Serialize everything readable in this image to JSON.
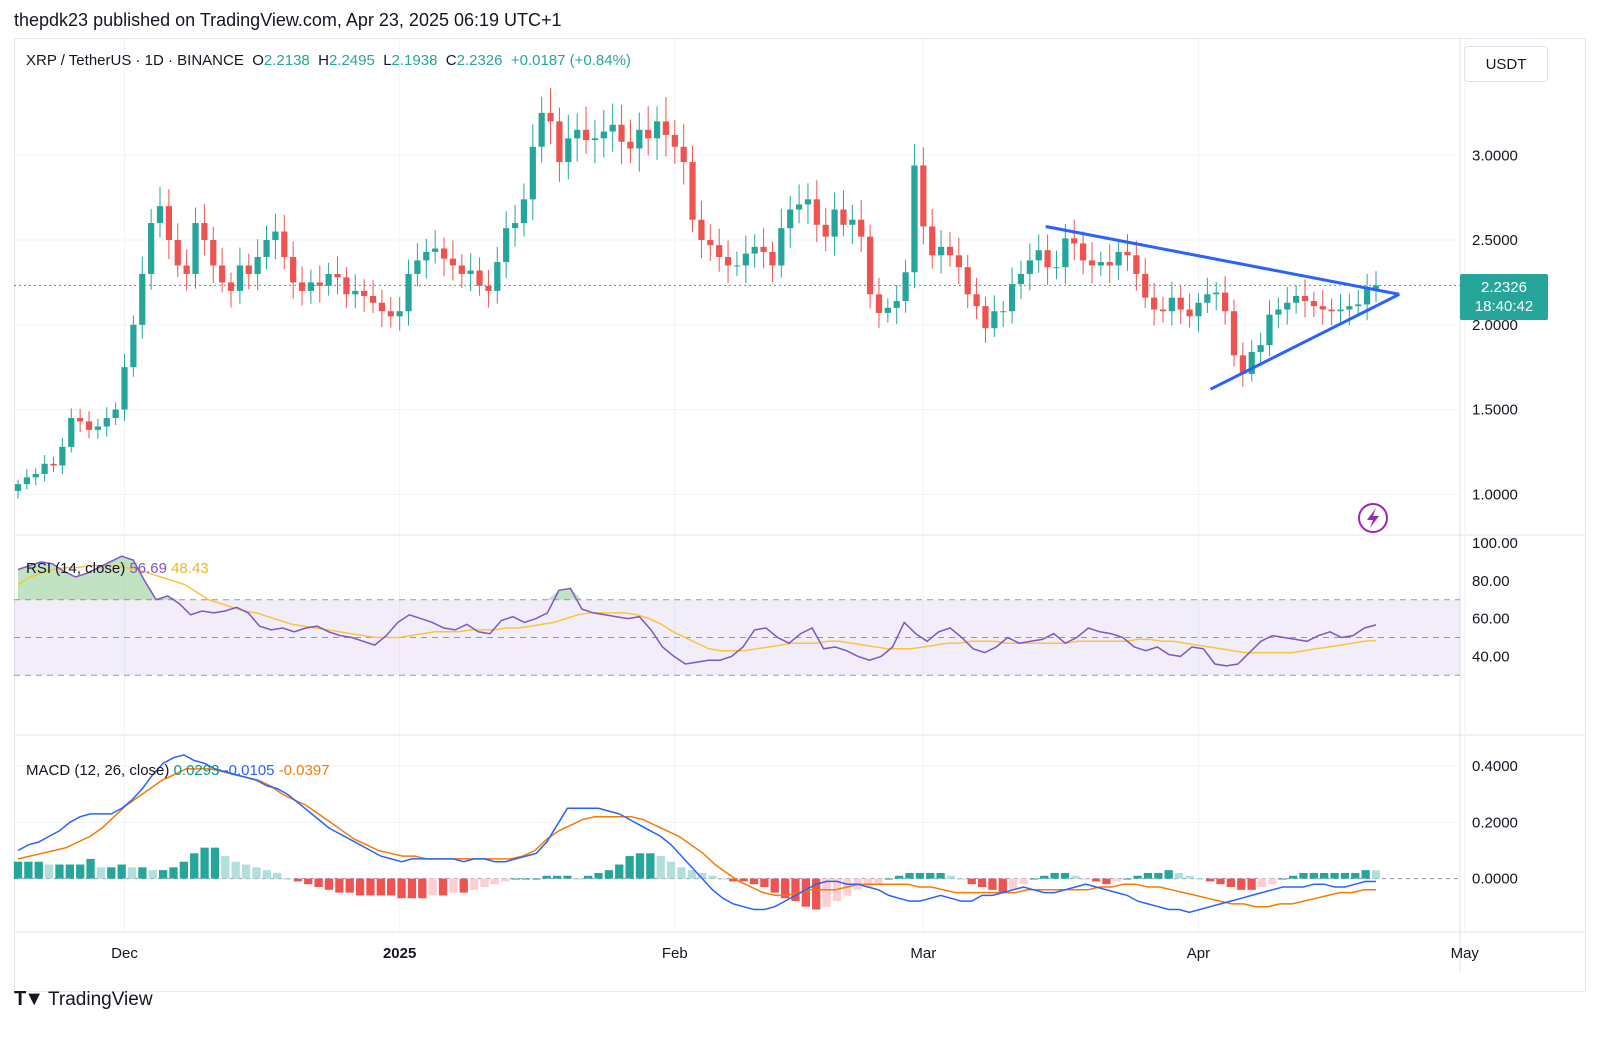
{
  "header": {
    "text": "thepdk23 published on TradingView.com, Apr 23, 2025 06:19 UTC+1"
  },
  "legend": {
    "symbol": "XRP / TetherUS · 1D · BINANCE",
    "o_label": "O",
    "o_value": "2.2138",
    "h_label": "H",
    "h_value": "2.2495",
    "l_label": "L",
    "l_value": "2.1938",
    "c_label": "C",
    "c_value": "2.2326",
    "change": "+0.0187 (+0.84%)"
  },
  "currency_button": "USDT",
  "last_price": {
    "value": "2.2326",
    "countdown": "18:40:42"
  },
  "rsi_legend": {
    "label": "RSI (14, close)",
    "rsi": "56.69",
    "ma": "48.43"
  },
  "macd_legend": {
    "label": "MACD (12, 26, close)",
    "hist": "0.0293",
    "macd": "-0.0105",
    "signal": "-0.0397"
  },
  "footer": {
    "brand": "TradingView"
  },
  "colors": {
    "up": "#26a69a",
    "down": "#ef5350",
    "rsi_line": "#7e57c2",
    "rsi_ma": "#f7c540",
    "macd_line": "#2962ff",
    "signal_line": "#f57c00",
    "trendline": "#2962ff"
  },
  "chart_data": {
    "type": "candlestick",
    "x_axis_labels": [
      "Dec",
      "2025",
      "Feb",
      "Mar",
      "Apr",
      "May"
    ],
    "price_axis": {
      "ticks": [
        "3.0000",
        "2.5000",
        "2.0000",
        "1.5000",
        "1.0000"
      ],
      "range": [
        0.76,
        3.68
      ]
    },
    "rsi_axis": {
      "ticks": [
        "100.00",
        "80.00",
        "60.00",
        "40.00"
      ],
      "bands": [
        70,
        50,
        30
      ]
    },
    "macd_axis": {
      "ticks": [
        "0.4000",
        "0.2000",
        "0.0000"
      ],
      "range": [
        -0.19,
        0.5
      ]
    },
    "close": [
      1.06,
      1.1,
      1.12,
      1.18,
      1.17,
      1.28,
      1.45,
      1.43,
      1.38,
      1.4,
      1.45,
      1.5,
      1.75,
      2.0,
      2.3,
      2.6,
      2.7,
      2.5,
      2.35,
      2.3,
      2.6,
      2.5,
      2.35,
      2.25,
      2.2,
      2.35,
      2.3,
      2.4,
      2.5,
      2.55,
      2.4,
      2.25,
      2.2,
      2.25,
      2.23,
      2.3,
      2.28,
      2.18,
      2.2,
      2.17,
      2.13,
      2.08,
      2.05,
      2.08,
      2.3,
      2.38,
      2.43,
      2.45,
      2.39,
      2.35,
      2.3,
      2.32,
      2.23,
      2.2,
      2.37,
      2.57,
      2.6,
      2.74,
      3.05,
      3.25,
      3.2,
      2.96,
      3.1,
      3.15,
      3.09,
      3.1,
      3.14,
      3.18,
      3.08,
      3.04,
      3.15,
      3.1,
      3.2,
      3.12,
      3.05,
      2.96,
      2.62,
      2.5,
      2.47,
      2.4,
      2.35,
      2.35,
      2.42,
      2.46,
      2.43,
      2.35,
      2.57,
      2.68,
      2.71,
      2.74,
      2.59,
      2.52,
      2.68,
      2.59,
      2.62,
      2.52,
      2.18,
      2.07,
      2.1,
      2.14,
      2.31,
      2.94,
      2.58,
      2.41,
      2.46,
      2.41,
      2.34,
      2.18,
      2.11,
      1.98,
      2.08,
      2.08,
      2.24,
      2.3,
      2.38,
      2.44,
      2.34,
      2.34,
      2.51,
      2.48,
      2.38,
      2.35,
      2.37,
      2.35,
      2.43,
      2.41,
      2.3,
      2.16,
      2.09,
      2.08,
      2.16,
      2.09,
      2.05,
      2.13,
      2.18,
      2.19,
      2.08,
      1.82,
      1.71,
      1.84,
      1.88,
      2.06,
      2.09,
      2.13,
      2.17,
      2.14,
      2.11,
      2.09,
      2.08,
      2.09,
      2.11,
      2.12,
      2.2138,
      2.2326
    ],
    "macd": [
      0.1,
      0.12,
      0.13,
      0.15,
      0.17,
      0.2,
      0.22,
      0.23,
      0.23,
      0.23,
      0.25,
      0.28,
      0.32,
      0.37,
      0.41,
      0.43,
      0.44,
      0.42,
      0.41,
      0.39,
      0.38,
      0.37,
      0.36,
      0.35,
      0.33,
      0.32,
      0.3,
      0.27,
      0.24,
      0.21,
      0.18,
      0.16,
      0.14,
      0.12,
      0.1,
      0.08,
      0.07,
      0.06,
      0.07,
      0.07,
      0.07,
      0.07,
      0.07,
      0.06,
      0.07,
      0.07,
      0.06,
      0.06,
      0.07,
      0.08,
      0.09,
      0.13,
      0.19,
      0.25,
      0.25,
      0.25,
      0.25,
      0.24,
      0.23,
      0.21,
      0.19,
      0.17,
      0.15,
      0.12,
      0.08,
      0.04,
      0.0,
      -0.04,
      -0.07,
      -0.09,
      -0.1,
      -0.11,
      -0.11,
      -0.1,
      -0.08,
      -0.06,
      -0.04,
      -0.02,
      -0.01,
      -0.01,
      -0.02,
      -0.02,
      -0.03,
      -0.04,
      -0.06,
      -0.07,
      -0.08,
      -0.08,
      -0.07,
      -0.06,
      -0.07,
      -0.08,
      -0.08,
      -0.06,
      -0.06,
      -0.05,
      -0.04,
      -0.03,
      -0.04,
      -0.05,
      -0.05,
      -0.04,
      -0.03,
      -0.02,
      -0.03,
      -0.04,
      -0.05,
      -0.06,
      -0.08,
      -0.09,
      -0.1,
      -0.11,
      -0.11,
      -0.12,
      -0.11,
      -0.1,
      -0.09,
      -0.08,
      -0.07,
      -0.06,
      -0.05,
      -0.04,
      -0.03,
      -0.03,
      -0.03,
      -0.02,
      -0.02,
      -0.03,
      -0.03,
      -0.02,
      -0.01,
      -0.0105
    ],
    "signal": [
      0.07,
      0.08,
      0.09,
      0.1,
      0.11,
      0.13,
      0.15,
      0.18,
      0.22,
      0.26,
      0.29,
      0.32,
      0.35,
      0.37,
      0.39,
      0.39,
      0.39,
      0.38,
      0.37,
      0.36,
      0.35,
      0.33,
      0.3,
      0.28,
      0.26,
      0.23,
      0.2,
      0.17,
      0.14,
      0.12,
      0.1,
      0.09,
      0.08,
      0.08,
      0.07,
      0.07,
      0.07,
      0.07,
      0.07,
      0.07,
      0.07,
      0.07,
      0.08,
      0.1,
      0.14,
      0.17,
      0.19,
      0.21,
      0.22,
      0.22,
      0.22,
      0.22,
      0.21,
      0.19,
      0.17,
      0.15,
      0.12,
      0.09,
      0.05,
      0.02,
      -0.01,
      -0.03,
      -0.05,
      -0.06,
      -0.06,
      -0.05,
      -0.04,
      -0.04,
      -0.04,
      -0.03,
      -0.02,
      -0.02,
      -0.02,
      -0.02,
      -0.02,
      -0.03,
      -0.03,
      -0.04,
      -0.05,
      -0.05,
      -0.05,
      -0.05,
      -0.05,
      -0.05,
      -0.04,
      -0.04,
      -0.04,
      -0.04,
      -0.04,
      -0.04,
      -0.03,
      -0.03,
      -0.02,
      -0.02,
      -0.03,
      -0.03,
      -0.04,
      -0.05,
      -0.06,
      -0.07,
      -0.08,
      -0.09,
      -0.09,
      -0.1,
      -0.1,
      -0.09,
      -0.09,
      -0.08,
      -0.07,
      -0.06,
      -0.05,
      -0.05,
      -0.04,
      -0.0397
    ],
    "hist": [
      0.06,
      0.06,
      0.06,
      0.05,
      0.05,
      0.05,
      0.05,
      0.07,
      0.04,
      0.04,
      0.05,
      0.04,
      0.04,
      0.03,
      0.03,
      0.04,
      0.06,
      0.09,
      0.11,
      0.11,
      0.08,
      0.06,
      0.05,
      0.04,
      0.03,
      0.02,
      0.0,
      -0.01,
      -0.02,
      -0.03,
      -0.04,
      -0.05,
      -0.05,
      -0.06,
      -0.06,
      -0.06,
      -0.06,
      -0.07,
      -0.07,
      -0.07,
      -0.06,
      -0.06,
      -0.05,
      -0.05,
      -0.04,
      -0.03,
      -0.02,
      -0.01,
      0.0,
      0.0,
      0.0,
      0.01,
      0.01,
      0.01,
      0.0,
      0.01,
      0.02,
      0.03,
      0.05,
      0.08,
      0.09,
      0.09,
      0.08,
      0.06,
      0.04,
      0.03,
      0.02,
      0.01,
      0.0,
      -0.01,
      -0.01,
      -0.02,
      -0.03,
      -0.05,
      -0.07,
      -0.08,
      -0.1,
      -0.11,
      -0.1,
      -0.08,
      -0.06,
      -0.04,
      -0.03,
      -0.02,
      0.0,
      0.01,
      0.02,
      0.02,
      0.02,
      0.02,
      0.01,
      0.0,
      -0.02,
      -0.03,
      -0.04,
      -0.05,
      -0.04,
      -0.02,
      0.0,
      0.01,
      0.02,
      0.02,
      0.01,
      0.0,
      -0.01,
      -0.02,
      -0.01,
      0.0,
      0.01,
      0.02,
      0.02,
      0.03,
      0.02,
      0.01,
      0.0,
      -0.01,
      -0.02,
      -0.03,
      -0.04,
      -0.04,
      -0.03,
      -0.02,
      0.0,
      0.01,
      0.02,
      0.02,
      0.02,
      0.02,
      0.02,
      0.02,
      0.03,
      0.0293
    ],
    "rsi": [
      86,
      88,
      90,
      89,
      85,
      82,
      84,
      87,
      90,
      93,
      91,
      80,
      70,
      72,
      68,
      62,
      64,
      63,
      64,
      66,
      63,
      56,
      54,
      55,
      53,
      55,
      56,
      53,
      51,
      50,
      48,
      46,
      51,
      58,
      62,
      60,
      58,
      55,
      54,
      57,
      53,
      52,
      59,
      61,
      58,
      60,
      63,
      75,
      76,
      65,
      63,
      62,
      61,
      60,
      61,
      54,
      45,
      40,
      36,
      37,
      38,
      38,
      40,
      45,
      54,
      55,
      50,
      47,
      52,
      55,
      44,
      45,
      43,
      40,
      38,
      40,
      45,
      58,
      52,
      48,
      53,
      55,
      50,
      44,
      42,
      45,
      50,
      47,
      48,
      49,
      52,
      47,
      50,
      55,
      53,
      52,
      50,
      45,
      43,
      45,
      41,
      40,
      45,
      44,
      36,
      35,
      36,
      42,
      48,
      51,
      50,
      49,
      48,
      51,
      53,
      50,
      51,
      55,
      56.69
    ],
    "rsi_ma": [
      78,
      82,
      84,
      86,
      87,
      87,
      88,
      88,
      88,
      87,
      86,
      84,
      82,
      80,
      78,
      74,
      70,
      68,
      66,
      64,
      63,
      61,
      59,
      57,
      56,
      55,
      54,
      53,
      52,
      51,
      50,
      50,
      50,
      51,
      52,
      53,
      53,
      53,
      54,
      54,
      54,
      55,
      55,
      56,
      57,
      58,
      60,
      62,
      63,
      63,
      63,
      63,
      62,
      60,
      57,
      53,
      50,
      47,
      44,
      43,
      43,
      43,
      44,
      45,
      46,
      47,
      47,
      47,
      48,
      48,
      47,
      46,
      45,
      44,
      44,
      44,
      45,
      46,
      47,
      47,
      48,
      48,
      48,
      47,
      47,
      47,
      47,
      47,
      47,
      48,
      48,
      48,
      48,
      48,
      49,
      49,
      48,
      48,
      47,
      46,
      45,
      44,
      43,
      42,
      42,
      42,
      42,
      42,
      43,
      44,
      45,
      46,
      47,
      48,
      48.43
    ],
    "trendlines": [
      {
        "from": [
          0.7135,
          2.58
        ],
        "to": [
          0.958,
          2.18
        ]
      },
      {
        "from": [
          0.8275,
          1.62
        ],
        "to": [
          0.958,
          2.18
        ]
      }
    ]
  }
}
